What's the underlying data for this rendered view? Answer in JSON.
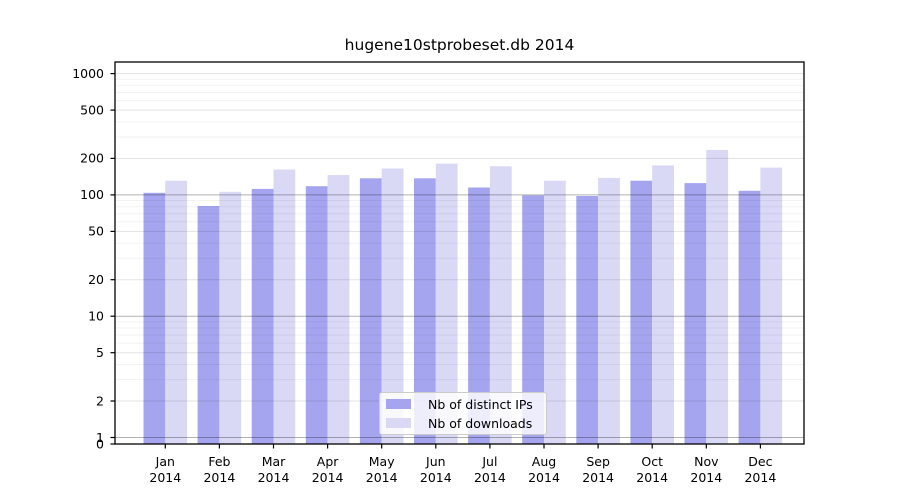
{
  "chart_data": {
    "type": "bar",
    "title": "hugene10stprobeset.db 2014",
    "categories": [
      "Jan",
      "Feb",
      "Mar",
      "Apr",
      "May",
      "Jun",
      "Jul",
      "Aug",
      "Sep",
      "Oct",
      "Nov",
      "Dec"
    ],
    "year_label": "2014",
    "series": [
      {
        "name": "Nb of distinct IPs",
        "color": "#a5a5ef",
        "values": [
          104,
          81,
          112,
          118,
          137,
          137,
          115,
          99,
          98,
          131,
          125,
          108
        ]
      },
      {
        "name": "Nb of downloads",
        "color": "#d9d9f6",
        "values": [
          131,
          106,
          162,
          146,
          165,
          181,
          172,
          131,
          138,
          175,
          235,
          168
        ]
      }
    ],
    "yscale": "log with zero floor",
    "yticks": [
      1000,
      500,
      200,
      100,
      50,
      20,
      10,
      5,
      2,
      1,
      0
    ],
    "ylim": [
      0,
      1250
    ],
    "xlabel": "",
    "ylabel": "",
    "grid": "on",
    "legend_position": "inside lower-center",
    "colors": {
      "axis": "#000000",
      "grid_decade": "#b3b3b3",
      "grid_labeled": "#e2e2e2",
      "grid_minor": "#f1f1f1",
      "legend_border": "#cccccc"
    }
  }
}
